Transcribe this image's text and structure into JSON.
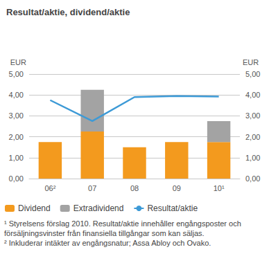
{
  "chart_data": {
    "type": "bar",
    "title": "Resultat/aktie, dividend/aktie",
    "y_label": "EUR",
    "y2_label": "EUR",
    "categories": [
      "06²",
      "07",
      "08",
      "09",
      "10¹"
    ],
    "stacked": true,
    "grid": true,
    "legend": "bottom-left",
    "series": [
      {
        "name": "Dividend",
        "type": "bar",
        "color": "#f39a1e",
        "values": [
          1.75,
          2.25,
          1.5,
          1.75,
          1.75
        ]
      },
      {
        "name": "Extradividend",
        "type": "bar",
        "color": "#a3a3a3",
        "values": [
          null,
          2.0,
          null,
          null,
          1.0
        ]
      },
      {
        "name": "Resultat/aktie",
        "type": "line",
        "axis": "y2",
        "color": "#3d9ad6",
        "values": [
          3.75,
          2.75,
          3.9,
          3.95,
          3.92
        ]
      }
    ],
    "ylim": [
      0,
      5
    ],
    "yticks": [
      {
        "value": 0,
        "label": "0,00"
      },
      {
        "value": 1,
        "label": "1,00"
      },
      {
        "value": 2,
        "label": "2,00"
      },
      {
        "value": 3,
        "label": "3,00"
      },
      {
        "value": 4,
        "label": "4,00"
      },
      {
        "value": 5,
        "label": "5,00"
      }
    ],
    "y2lim": [
      0,
      5
    ],
    "y2ticks": [
      {
        "value": 0,
        "label": "0,00"
      },
      {
        "value": 1,
        "label": "1,00"
      },
      {
        "value": 2,
        "label": "2,00"
      },
      {
        "value": 3,
        "label": "3,00"
      },
      {
        "value": 4,
        "label": "4,00"
      },
      {
        "value": 5,
        "label": "5,00"
      }
    ],
    "notes": [
      "¹ Styrelsens förslag 2010. Resultat/aktie innehåller engångsposter och försäljningsvinster från finansiella tillgångar som kan säljas.",
      "² Inkluderar intäkter av engångsnatur; Assa Abloy och Ovako."
    ]
  }
}
